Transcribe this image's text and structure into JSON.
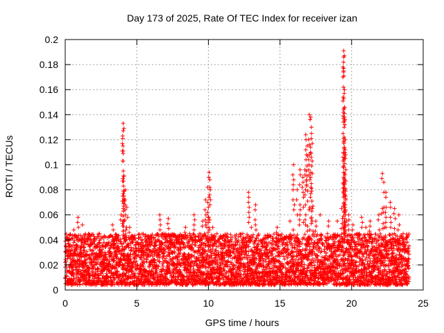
{
  "chart_data": {
    "type": "scatter",
    "title": "Day 173 of 2025, Rate Of TEC Index for receiver izan",
    "xlabel": "GPS time / hours",
    "ylabel": "ROTI / TECUs",
    "xlim": [
      0,
      25
    ],
    "ylim": [
      0,
      0.2
    ],
    "xticks": [
      0,
      5,
      10,
      15,
      20,
      25
    ],
    "yticks": [
      0,
      0.02,
      0.04,
      0.06,
      0.08,
      0.1,
      0.12,
      0.14,
      0.16,
      0.18,
      0.2
    ],
    "xtick_labels": [
      "0",
      "5",
      "10",
      "15",
      "20",
      "25"
    ],
    "ytick_labels": [
      "0",
      "0.02",
      "0.04",
      "0.06",
      "0.08",
      "0.1",
      "0.12",
      "0.14",
      "0.16",
      "0.18",
      "0.2"
    ],
    "grid": true,
    "marker": "+",
    "marker_color": "#ff0000",
    "series": [
      {
        "name": "ROTI",
        "points": [
          [
            0.0,
            0.022
          ],
          [
            0.3,
            0.035
          ],
          [
            0.6,
            0.048
          ],
          [
            0.9,
            0.058
          ],
          [
            1.2,
            0.052
          ],
          [
            1.5,
            0.028
          ],
          [
            1.8,
            0.021
          ],
          [
            2.1,
            0.027
          ],
          [
            2.4,
            0.045
          ],
          [
            2.7,
            0.038
          ],
          [
            3.0,
            0.03
          ],
          [
            3.3,
            0.052
          ],
          [
            3.6,
            0.042
          ],
          [
            3.9,
            0.06
          ],
          [
            4.05,
            0.133
          ],
          [
            4.05,
            0.127
          ],
          [
            4.05,
            0.111
          ],
          [
            4.1,
            0.091
          ],
          [
            4.2,
            0.08
          ],
          [
            4.3,
            0.066
          ],
          [
            4.5,
            0.05
          ],
          [
            4.8,
            0.031
          ],
          [
            5.1,
            0.028
          ],
          [
            5.4,
            0.022
          ],
          [
            5.7,
            0.036
          ],
          [
            6.0,
            0.04
          ],
          [
            6.3,
            0.032
          ],
          [
            6.6,
            0.06
          ],
          [
            6.9,
            0.045
          ],
          [
            7.2,
            0.057
          ],
          [
            7.5,
            0.025
          ],
          [
            7.8,
            0.042
          ],
          [
            8.1,
            0.037
          ],
          [
            8.4,
            0.05
          ],
          [
            8.7,
            0.045
          ],
          [
            9.0,
            0.06
          ],
          [
            9.3,
            0.04
          ],
          [
            9.6,
            0.055
          ],
          [
            9.8,
            0.072
          ],
          [
            9.95,
            0.082
          ],
          [
            10.05,
            0.094
          ],
          [
            10.1,
            0.088
          ],
          [
            10.3,
            0.05
          ],
          [
            10.6,
            0.045
          ],
          [
            10.9,
            0.035
          ],
          [
            11.2,
            0.03
          ],
          [
            11.5,
            0.028
          ],
          [
            11.8,
            0.026
          ],
          [
            12.1,
            0.03
          ],
          [
            12.4,
            0.045
          ],
          [
            12.8,
            0.078
          ],
          [
            13.0,
            0.05
          ],
          [
            13.3,
            0.068
          ],
          [
            13.6,
            0.02
          ],
          [
            13.9,
            0.035
          ],
          [
            14.2,
            0.03
          ],
          [
            14.5,
            0.025
          ],
          [
            14.8,
            0.05
          ],
          [
            15.1,
            0.03
          ],
          [
            15.4,
            0.036
          ],
          [
            15.7,
            0.055
          ],
          [
            15.95,
            0.1
          ],
          [
            16.2,
            0.08
          ],
          [
            16.4,
            0.096
          ],
          [
            16.6,
            0.09
          ],
          [
            16.8,
            0.124
          ],
          [
            16.9,
            0.115
          ],
          [
            17.05,
            0.14
          ],
          [
            17.15,
            0.138
          ],
          [
            17.2,
            0.125
          ],
          [
            17.25,
            0.103
          ],
          [
            17.5,
            0.055
          ],
          [
            17.8,
            0.06
          ],
          [
            18.1,
            0.035
          ],
          [
            18.4,
            0.055
          ],
          [
            18.7,
            0.04
          ],
          [
            19.0,
            0.055
          ],
          [
            19.3,
            0.065
          ],
          [
            19.45,
            0.191
          ],
          [
            19.45,
            0.186
          ],
          [
            19.45,
            0.177
          ],
          [
            19.5,
            0.16
          ],
          [
            19.5,
            0.138
          ],
          [
            19.55,
            0.12
          ],
          [
            19.55,
            0.105
          ],
          [
            19.6,
            0.087
          ],
          [
            19.8,
            0.06
          ],
          [
            20.1,
            0.052
          ],
          [
            20.4,
            0.045
          ],
          [
            20.7,
            0.058
          ],
          [
            21.0,
            0.05
          ],
          [
            21.3,
            0.055
          ],
          [
            21.6,
            0.04
          ],
          [
            21.9,
            0.06
          ],
          [
            22.15,
            0.093
          ],
          [
            22.25,
            0.086
          ],
          [
            22.4,
            0.078
          ],
          [
            22.7,
            0.07
          ],
          [
            23.0,
            0.065
          ],
          [
            23.3,
            0.06
          ],
          [
            23.6,
            0.045
          ],
          [
            23.9,
            0.03
          ]
        ]
      }
    ],
    "noise_band": {
      "x_step_hours": 0.02,
      "base_min": 0.004,
      "base_max": 0.045
    }
  }
}
